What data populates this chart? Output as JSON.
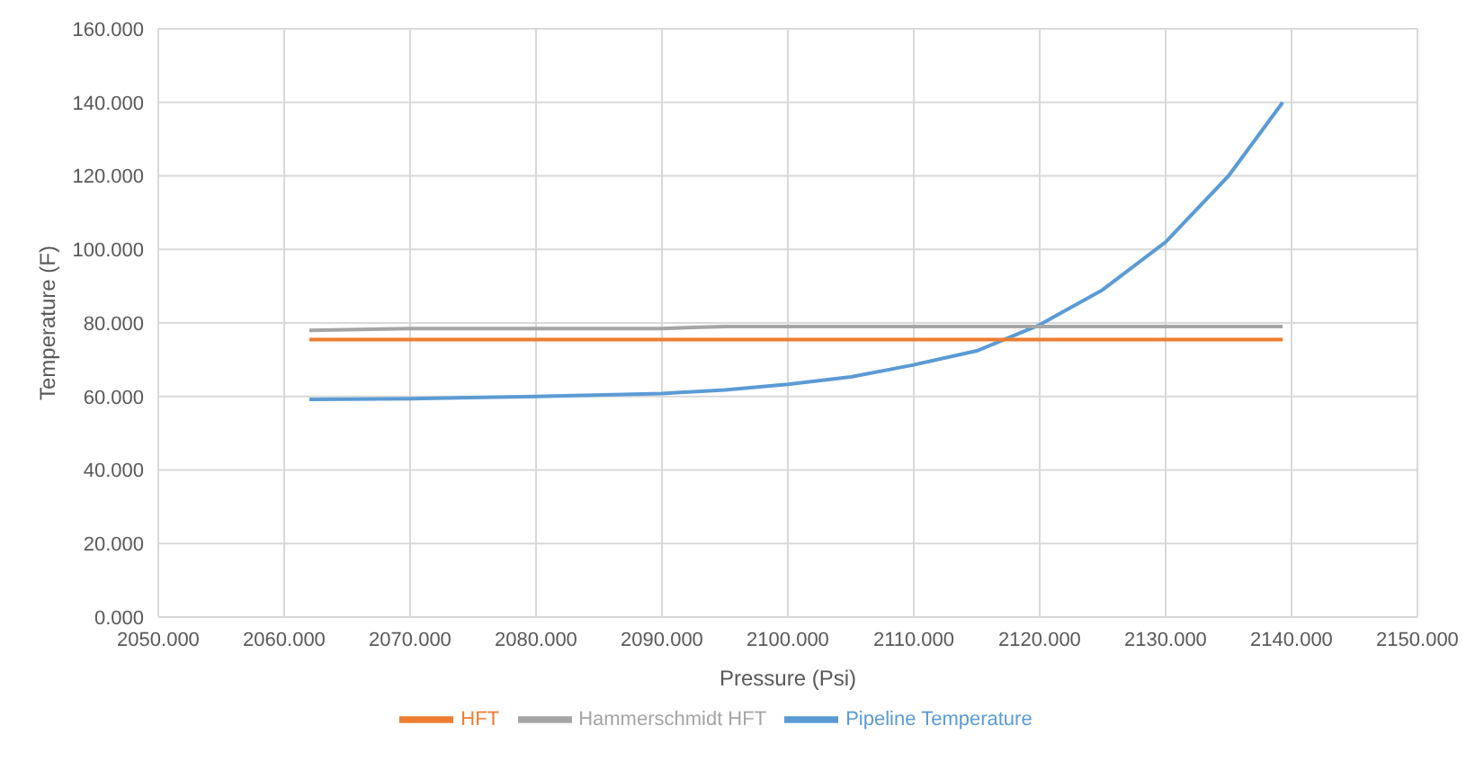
{
  "chart_data": {
    "type": "line",
    "xlabel": "Pressure (Psi)",
    "ylabel": "Temperature (F)",
    "xlim": [
      2050,
      2150
    ],
    "xticks": [
      {
        "value": 2050,
        "label": "2050.000"
      },
      {
        "value": 2060,
        "label": "2060.000"
      },
      {
        "value": 2070,
        "label": "2070.000"
      },
      {
        "value": 2080,
        "label": "2080.000"
      },
      {
        "value": 2090,
        "label": "2090.000"
      },
      {
        "value": 2100,
        "label": "2100.000"
      },
      {
        "value": 2110,
        "label": "2110.000"
      },
      {
        "value": 2120,
        "label": "2120.000"
      },
      {
        "value": 2130,
        "label": "2130.000"
      },
      {
        "value": 2140,
        "label": "2140.000"
      },
      {
        "value": 2150,
        "label": "2150.000"
      }
    ],
    "ylim": [
      0,
      160
    ],
    "yticks": [
      {
        "value": 0,
        "label": "0.000"
      },
      {
        "value": 20,
        "label": "20.000"
      },
      {
        "value": 40,
        "label": "40.000"
      },
      {
        "value": 60,
        "label": "60.000"
      },
      {
        "value": 80,
        "label": "80.000"
      },
      {
        "value": 100,
        "label": "100.000"
      },
      {
        "value": 120,
        "label": "120.000"
      },
      {
        "value": 140,
        "label": "140.000"
      },
      {
        "value": 160,
        "label": "160.000"
      }
    ],
    "grid": true,
    "legend": "bottom",
    "marker": "none",
    "line_style": "solid",
    "series": [
      {
        "name": "Pipeline Temperature",
        "color": "#5b9bd5",
        "x": [
          2062,
          2070,
          2080,
          2090,
          2095,
          2100,
          2105,
          2110,
          2115,
          2120,
          2125,
          2130,
          2135,
          2139.3
        ],
        "values": [
          59.2,
          59.4,
          60,
          60.8,
          61.8,
          63.3,
          65.3,
          68.6,
          72.4,
          79.5,
          89,
          102,
          120,
          140
        ]
      },
      {
        "name": "HFT",
        "color": "#ed7d31",
        "x": [
          2062,
          2139.3
        ],
        "values": [
          75.5,
          75.5
        ]
      },
      {
        "name": "Hammerschmidt HFT",
        "color": "#a5a5a5",
        "x": [
          2062,
          2070,
          2090,
          2095,
          2139.3
        ],
        "values": [
          78,
          78.5,
          78.5,
          79,
          79
        ]
      }
    ]
  }
}
